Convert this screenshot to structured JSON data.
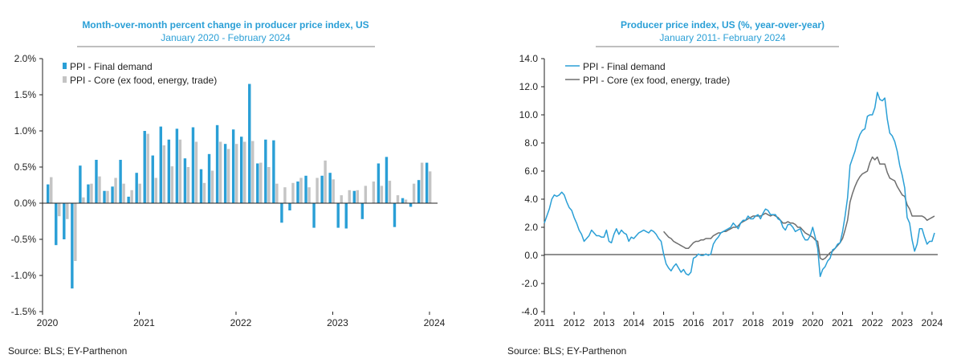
{
  "colors": {
    "final": "#2a9fd6",
    "core": "#c4c4c4",
    "core_line": "#6e6e6e",
    "title": "#2a9fd6"
  },
  "left": {
    "title": "Month-over-month  percent change in producer price index, US",
    "subtitle": "January 2020 - February 2024",
    "source": "Source: BLS; EY-Parthenon",
    "legend": [
      "PPI - Final demand",
      "PPI - Core (ex food, energy, trade)"
    ],
    "y_ticks": [
      "2.0%",
      "1.5%",
      "1.0%",
      "0.5%",
      "0.0%",
      "-0.5%",
      "-1.0%",
      "-1.5%"
    ],
    "x_ticks": [
      "2020",
      "2021",
      "2022",
      "2023",
      "2024"
    ]
  },
  "right": {
    "title": "Producer price index, US (%,  year-over-year)",
    "subtitle": "January 2011- February 2024",
    "source": "Source: BLS; EY-Parthenon",
    "legend": [
      "PPI - Final demand",
      "PPI - Core (ex food, energy, trade)"
    ],
    "y_ticks": [
      "14.0",
      "12.0",
      "10.0",
      "8.0",
      "6.0",
      "4.0",
      "2.0",
      "0.0",
      "-2.0",
      "-4.0"
    ],
    "x_ticks": [
      "2011",
      "2012",
      "2013",
      "2014",
      "2015",
      "2016",
      "2017",
      "2018",
      "2019",
      "2020",
      "2021",
      "2022",
      "2023",
      "2024"
    ]
  },
  "chart_data": [
    {
      "type": "bar",
      "title": "Month-over-month  percent change in producer price index, US",
      "subtitle": "January 2020 - February 2024",
      "x_start": "2020-01",
      "ylim": [
        -1.5,
        2.0
      ],
      "series": [
        {
          "name": "PPI - Final demand",
          "values": [
            0.26,
            -0.58,
            -0.5,
            -1.18,
            0.52,
            0.26,
            0.6,
            0.17,
            0.23,
            0.6,
            0.09,
            0.42,
            1.0,
            0.66,
            1.06,
            0.88,
            1.03,
            0.62,
            1.05,
            0.47,
            0.68,
            1.08,
            0.82,
            1.02,
            0.92,
            1.65,
            0.55,
            0.88,
            0.87,
            -0.27,
            -0.1,
            0.3,
            0.38,
            -0.34,
            0.38,
            0.42,
            -0.34,
            -0.35,
            0.17,
            -0.22,
            0.0,
            0.55,
            0.64,
            -0.33,
            0.07,
            -0.05,
            0.32,
            0.56
          ]
        },
        {
          "name": "PPI - Core (ex food, energy, trade)",
          "values": [
            0.36,
            -0.18,
            -0.22,
            -0.8,
            0.08,
            0.27,
            0.37,
            0.17,
            0.35,
            0.27,
            0.18,
            0.27,
            0.96,
            0.35,
            0.8,
            0.51,
            0.88,
            0.5,
            0.85,
            0.28,
            0.45,
            0.85,
            0.75,
            0.82,
            0.85,
            0.86,
            0.56,
            0.5,
            0.27,
            0.22,
            0.28,
            0.35,
            0.22,
            0.35,
            0.59,
            0.33,
            0.11,
            0.18,
            0.18,
            0.24,
            0.3,
            0.24,
            0.31,
            0.11,
            0.05,
            0.27,
            0.56,
            0.44
          ]
        }
      ]
    },
    {
      "type": "line",
      "title": "Producer price index, US (%,  year-over-year)",
      "subtitle": "January 2011- February 2024",
      "x_start": "2011-01",
      "ylim": [
        -4.0,
        14.0
      ],
      "series": [
        {
          "name": "PPI - Final demand",
          "values": [
            2.3,
            2.8,
            3.3,
            4.0,
            4.3,
            4.2,
            4.3,
            4.5,
            4.3,
            3.8,
            3.4,
            3.2,
            2.7,
            2.3,
            1.8,
            1.5,
            1.0,
            1.2,
            1.4,
            1.8,
            1.6,
            1.4,
            1.4,
            1.3,
            1.3,
            1.8,
            1.0,
            0.9,
            1.5,
            1.9,
            1.5,
            1.8,
            1.6,
            1.5,
            1.0,
            1.3,
            1.2,
            1.4,
            1.6,
            1.7,
            1.8,
            1.7,
            1.6,
            1.8,
            1.7,
            1.5,
            1.2,
            1.0,
            0.1,
            -0.6,
            -0.9,
            -1.1,
            -0.8,
            -0.6,
            -0.9,
            -1.2,
            -1.0,
            -1.3,
            -1.4,
            -1.2,
            -0.2,
            -0.1,
            0.1,
            0.0,
            0.0,
            0.1,
            0.0,
            0.1,
            0.8,
            1.1,
            1.3,
            1.6,
            1.7,
            1.8,
            1.9,
            2.0,
            2.3,
            2.1,
            1.9,
            2.3,
            2.5,
            2.5,
            2.8,
            2.6,
            2.6,
            2.8,
            2.9,
            2.6,
            3.0,
            3.3,
            3.2,
            2.9,
            2.9,
            2.9,
            2.6,
            2.5,
            2.0,
            1.8,
            2.2,
            2.2,
            2.0,
            1.7,
            1.8,
            1.9,
            1.4,
            1.1,
            1.1,
            1.4,
            2.0,
            1.3,
            0.5,
            -1.5,
            -1.0,
            -0.8,
            -0.4,
            -0.2,
            0.4,
            0.5,
            0.8,
            0.9,
            1.7,
            2.8,
            4.1,
            6.4,
            6.9,
            7.4,
            8.1,
            8.6,
            8.9,
            9.0,
            9.9,
            10.0,
            10.0,
            10.5,
            11.6,
            11.1,
            11.0,
            11.2,
            9.7,
            8.7,
            8.5,
            8.1,
            7.4,
            6.4,
            5.7,
            4.8,
            2.7,
            2.3,
            1.1,
            0.3,
            0.8,
            1.9,
            1.9,
            1.3,
            0.8,
            1.0,
            1.0,
            1.6
          ]
        },
        {
          "name": "PPI - Core (ex food, energy, trade)",
          "values": [
            null,
            null,
            null,
            null,
            null,
            null,
            null,
            null,
            null,
            null,
            null,
            null,
            null,
            null,
            null,
            null,
            null,
            null,
            null,
            null,
            null,
            null,
            null,
            null,
            null,
            null,
            null,
            null,
            null,
            null,
            null,
            null,
            null,
            null,
            null,
            null,
            null,
            null,
            null,
            null,
            null,
            null,
            null,
            null,
            null,
            null,
            null,
            null,
            1.7,
            1.5,
            1.3,
            1.2,
            1.0,
            0.9,
            0.8,
            0.7,
            0.6,
            0.5,
            0.5,
            0.7,
            0.9,
            1.0,
            1.0,
            1.1,
            1.1,
            1.2,
            1.2,
            1.2,
            1.4,
            1.5,
            1.6,
            1.6,
            1.7,
            1.7,
            1.8,
            1.9,
            2.0,
            2.0,
            2.1,
            2.3,
            2.4,
            2.5,
            2.6,
            2.7,
            2.8,
            2.8,
            2.8,
            2.8,
            2.9,
            3.0,
            2.9,
            2.8,
            2.9,
            2.8,
            2.7,
            2.5,
            2.3,
            2.3,
            2.4,
            2.3,
            2.3,
            2.2,
            2.0,
            2.0,
            1.8,
            1.6,
            1.5,
            1.4,
            1.3,
            1.1,
            1.0,
            -0.2,
            -0.3,
            -0.2,
            0.0,
            0.2,
            0.3,
            0.5,
            0.7,
            0.9,
            1.2,
            1.8,
            2.5,
            3.8,
            4.4,
            4.9,
            5.3,
            5.6,
            5.8,
            5.9,
            6.0,
            6.6,
            7.0,
            6.8,
            7.0,
            6.5,
            6.5,
            6.5,
            5.9,
            5.5,
            5.4,
            5.3,
            4.9,
            4.6,
            4.3,
            4.2,
            3.6,
            3.3,
            2.8,
            2.8,
            2.8,
            2.8,
            2.8,
            2.7,
            2.5,
            2.6,
            2.7,
            2.8
          ]
        }
      ]
    }
  ]
}
